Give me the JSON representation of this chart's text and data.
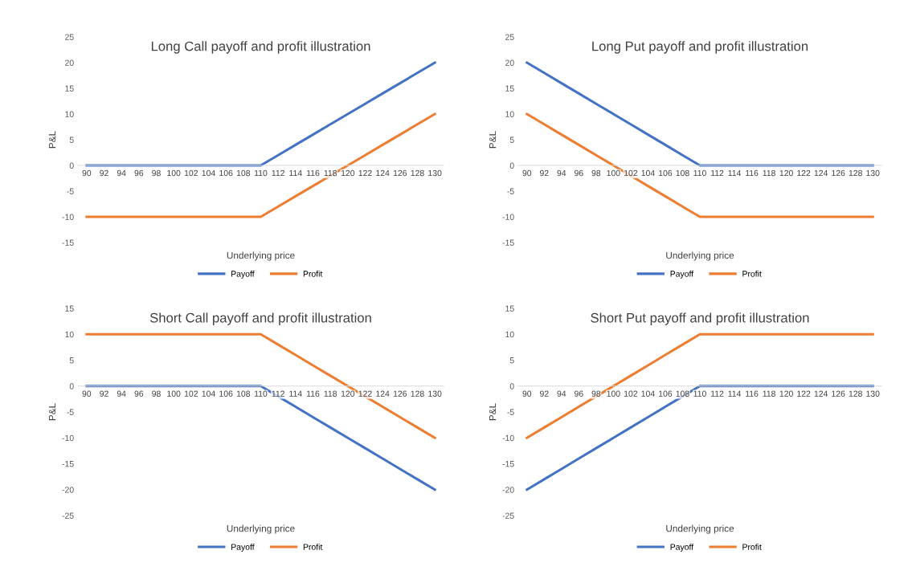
{
  "chart_data": [
    {
      "type": "line",
      "title": "Long Call payoff and profit illustration",
      "xlabel": "Underlying price",
      "ylabel": "P&L",
      "categories": [
        "90",
        "92",
        "94",
        "96",
        "98",
        "100",
        "102",
        "104",
        "106",
        "108",
        "110",
        "112",
        "114",
        "116",
        "118",
        "120",
        "122",
        "124",
        "126",
        "128",
        "130"
      ],
      "ylim": [
        -15,
        25
      ],
      "yticks": [
        -15,
        -10,
        -5,
        0,
        5,
        10,
        15,
        20,
        25
      ],
      "legend": "bottom",
      "grid": false,
      "series": [
        {
          "name": "Payoff",
          "color": "#4472c4",
          "values": [
            0,
            0,
            0,
            0,
            0,
            0,
            0,
            0,
            0,
            0,
            0,
            2,
            4,
            6,
            8,
            10,
            12,
            14,
            16,
            18,
            20
          ]
        },
        {
          "name": "Profit",
          "color": "#ed7d31",
          "values": [
            -10,
            -10,
            -10,
            -10,
            -10,
            -10,
            -10,
            -10,
            -10,
            -10,
            -10,
            -8,
            -6,
            -4,
            -2,
            0,
            2,
            4,
            6,
            8,
            10
          ]
        }
      ]
    },
    {
      "type": "line",
      "title": "Long Put payoff and profit illustration",
      "xlabel": "Underlying price",
      "ylabel": "P&L",
      "categories": [
        "90",
        "92",
        "94",
        "96",
        "98",
        "100",
        "102",
        "104",
        "106",
        "108",
        "110",
        "112",
        "114",
        "116",
        "118",
        "120",
        "122",
        "124",
        "126",
        "128",
        "130"
      ],
      "ylim": [
        -15,
        25
      ],
      "yticks": [
        -15,
        -10,
        -5,
        0,
        5,
        10,
        15,
        20,
        25
      ],
      "legend": "bottom",
      "grid": false,
      "series": [
        {
          "name": "Payoff",
          "color": "#4472c4",
          "values": [
            20,
            18,
            16,
            14,
            12,
            10,
            8,
            6,
            4,
            2,
            0,
            0,
            0,
            0,
            0,
            0,
            0,
            0,
            0,
            0,
            0
          ]
        },
        {
          "name": "Profit",
          "color": "#ed7d31",
          "values": [
            10,
            8,
            6,
            4,
            2,
            0,
            -2,
            -4,
            -6,
            -8,
            -10,
            -10,
            -10,
            -10,
            -10,
            -10,
            -10,
            -10,
            -10,
            -10,
            -10
          ]
        }
      ]
    },
    {
      "type": "line",
      "title": "Short Call payoff and profit illustration",
      "xlabel": "Underlying price",
      "ylabel": "P&L",
      "categories": [
        "90",
        "92",
        "94",
        "96",
        "98",
        "100",
        "102",
        "104",
        "106",
        "108",
        "110",
        "112",
        "114",
        "116",
        "118",
        "120",
        "122",
        "124",
        "126",
        "128",
        "130"
      ],
      "ylim": [
        -25,
        15
      ],
      "yticks": [
        -25,
        -20,
        -15,
        -10,
        -5,
        0,
        5,
        10,
        15
      ],
      "legend": "bottom",
      "grid": false,
      "series": [
        {
          "name": "Payoff",
          "color": "#4472c4",
          "values": [
            0,
            0,
            0,
            0,
            0,
            0,
            0,
            0,
            0,
            0,
            0,
            -2,
            -4,
            -6,
            -8,
            -10,
            -12,
            -14,
            -16,
            -18,
            -20
          ]
        },
        {
          "name": "Profit",
          "color": "#ed7d31",
          "values": [
            10,
            10,
            10,
            10,
            10,
            10,
            10,
            10,
            10,
            10,
            10,
            8,
            6,
            4,
            2,
            0,
            -2,
            -4,
            -6,
            -8,
            -10
          ]
        }
      ]
    },
    {
      "type": "line",
      "title": "Short Put payoff and profit illustration",
      "xlabel": "Underlying price",
      "ylabel": "P&L",
      "categories": [
        "90",
        "92",
        "94",
        "96",
        "98",
        "100",
        "102",
        "104",
        "106",
        "108",
        "110",
        "112",
        "114",
        "116",
        "118",
        "120",
        "122",
        "124",
        "126",
        "128",
        "130"
      ],
      "ylim": [
        -25,
        15
      ],
      "yticks": [
        -25,
        -20,
        -15,
        -10,
        -5,
        0,
        5,
        10,
        15
      ],
      "legend": "bottom",
      "grid": false,
      "series": [
        {
          "name": "Payoff",
          "color": "#4472c4",
          "values": [
            -20,
            -18,
            -16,
            -14,
            -12,
            -10,
            -8,
            -6,
            -4,
            -2,
            0,
            0,
            0,
            0,
            0,
            0,
            0,
            0,
            0,
            0,
            0
          ]
        },
        {
          "name": "Profit",
          "color": "#ed7d31",
          "values": [
            -10,
            -8,
            -6,
            -4,
            -2,
            0,
            2,
            4,
            6,
            8,
            10,
            10,
            10,
            10,
            10,
            10,
            10,
            10,
            10,
            10,
            10
          ]
        }
      ]
    }
  ]
}
